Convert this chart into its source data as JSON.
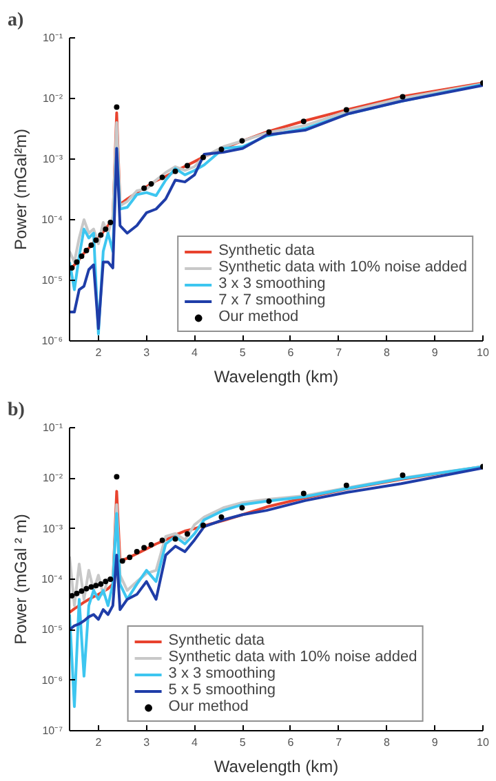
{
  "chart_data": [
    {
      "type": "line",
      "title": "a)",
      "xlabel": "Wavelength (km)",
      "ylabel": "Power (mGal²m)",
      "log": "y",
      "grid": false,
      "legend": "bottom right",
      "xlim": [
        1.4,
        10
      ],
      "ylim": [
        1e-06,
        0.1
      ],
      "xticks": [
        2,
        3,
        4,
        5,
        6,
        7,
        8,
        9,
        10
      ],
      "yticks": [
        {
          "value": 1e-06,
          "label": "10⁻⁶"
        },
        {
          "value": 1e-05,
          "label": "10⁻⁵"
        },
        {
          "value": 0.0001,
          "label": "10⁻⁴"
        },
        {
          "value": 0.001,
          "label": "10⁻³"
        },
        {
          "value": 0.01,
          "label": "10⁻²"
        },
        {
          "value": 0.1,
          "label": "10⁻¹"
        }
      ],
      "x": [
        1.4,
        1.5,
        1.6,
        1.7,
        1.8,
        1.9,
        2.0,
        2.1,
        2.2,
        2.3,
        2.38,
        2.45,
        2.6,
        2.8,
        3.0,
        3.2,
        3.4,
        3.6,
        3.8,
        4.0,
        4.2,
        4.6,
        5.0,
        5.5,
        6.3,
        7.2,
        8.3,
        10
      ],
      "series": [
        {
          "name": "Synthetic data",
          "color": "#e8432e",
          "values": [
            1.4e-05,
            1.8e-05,
            2.2e-05,
            2.8e-05,
            3.4e-05,
            4.2e-05,
            5e-05,
            6.3e-05,
            8e-05,
            0.0001,
            0.0058,
            0.00018,
            0.00022,
            0.00028,
            0.00035,
            0.00044,
            0.00052,
            0.00063,
            0.00076,
            0.00091,
            0.0011,
            0.0015,
            0.002,
            0.0028,
            0.0043,
            0.0066,
            0.0107,
            0.018
          ]
        },
        {
          "name": "Synthetic data with 10% noise added",
          "color": "#c8c8c8",
          "values": [
            3e-05,
            2e-05,
            5e-05,
            0.0001,
            6e-05,
            7e-05,
            4e-05,
            9e-05,
            6e-05,
            0.00011,
            0.004,
            0.00017,
            0.0002,
            0.0003,
            0.00032,
            0.00045,
            0.0006,
            0.00075,
            0.00065,
            0.00075,
            0.0011,
            0.0016,
            0.002,
            0.0027,
            0.0036,
            0.0062,
            0.01,
            0.0175
          ]
        },
        {
          "name": "3 x 3 smoothing",
          "color": "#3dc6f0",
          "values": [
            2e-05,
            7e-06,
            2.5e-05,
            7e-05,
            5e-05,
            6e-05,
            1.3e-06,
            3e-05,
            6e-05,
            3e-05,
            0.0015,
            0.00015,
            0.00016,
            0.00026,
            0.00028,
            0.00025,
            0.00045,
            0.0007,
            0.00055,
            0.00065,
            0.0008,
            0.0015,
            0.0016,
            0.0024,
            0.0032,
            0.0056,
            0.009,
            0.017
          ]
        },
        {
          "name": "7 x 7 smoothing",
          "color": "#1f3da8",
          "values": [
            3e-06,
            3e-06,
            7e-06,
            8e-06,
            1.5e-05,
            1.8e-05,
            1.6e-06,
            2e-05,
            2e-05,
            1.6e-05,
            0.0015,
            8e-05,
            6e-05,
            8e-05,
            0.00013,
            0.00015,
            0.00022,
            0.00045,
            0.00042,
            0.00055,
            0.0012,
            0.0013,
            0.0015,
            0.0025,
            0.003,
            0.0056,
            0.009,
            0.0165
          ]
        },
        {
          "name": "Our method",
          "type": "scatter",
          "marker": "circle",
          "color": "#000000",
          "x": [
            1.45,
            1.55,
            1.65,
            1.75,
            1.85,
            1.95,
            2.05,
            2.15,
            2.25,
            2.38,
            2.95,
            3.1,
            3.33,
            3.6,
            3.85,
            4.18,
            4.56,
            4.99,
            5.55,
            6.27,
            7.16,
            8.33,
            10
          ],
          "values": [
            1.6e-05,
            2e-05,
            2.5e-05,
            3.1e-05,
            3.8e-05,
            4.6e-05,
            5.6e-05,
            7e-05,
            9e-05,
            0.0072,
            0.00033,
            0.00039,
            0.0005,
            0.00063,
            0.00078,
            0.00107,
            0.00145,
            0.002,
            0.0028,
            0.0042,
            0.0065,
            0.0107,
            0.018
          ]
        }
      ]
    },
    {
      "type": "line",
      "title": "b)",
      "xlabel": "Wavelength (km)",
      "ylabel": "Power (mGal ² m)",
      "log": "y",
      "grid": false,
      "legend": "bottom",
      "xlim": [
        1.4,
        10
      ],
      "ylim": [
        1e-07,
        0.1
      ],
      "xticks": [
        2,
        3,
        4,
        5,
        6,
        7,
        8,
        9,
        10
      ],
      "yticks": [
        {
          "value": 1e-07,
          "label": "10⁻⁷"
        },
        {
          "value": 1e-06,
          "label": "10⁻⁶"
        },
        {
          "value": 1e-05,
          "label": "10⁻⁵"
        },
        {
          "value": 0.0001,
          "label": "10⁻⁴"
        },
        {
          "value": 0.001,
          "label": "10⁻³"
        },
        {
          "value": 0.01,
          "label": "10⁻²"
        },
        {
          "value": 0.1,
          "label": "10⁻¹"
        }
      ],
      "x": [
        1.4,
        1.5,
        1.6,
        1.7,
        1.8,
        1.9,
        2.0,
        2.1,
        2.2,
        2.3,
        2.38,
        2.45,
        2.6,
        2.8,
        3.0,
        3.2,
        3.4,
        3.6,
        3.8,
        4.0,
        4.2,
        4.6,
        5.0,
        5.5,
        6.3,
        7.2,
        8.3,
        10
      ],
      "series": [
        {
          "name": "Synthetic data",
          "color": "#e8432e",
          "values": [
            2.2e-05,
            2.6e-05,
            3e-05,
            3.5e-05,
            4e-05,
            4.5e-05,
            5e-05,
            5.7e-05,
            6.5e-05,
            8e-05,
            0.0055,
            0.00023,
            0.00026,
            0.00032,
            0.0004,
            0.0005,
            0.0006,
            0.00075,
            0.0009,
            0.001,
            0.00115,
            0.00145,
            0.0019,
            0.0027,
            0.0041,
            0.0062,
            0.0095,
            0.017
          ]
        },
        {
          "name": "Synthetic data with 10% noise added",
          "color": "#c8c8c8",
          "values": [
            0.00028,
            3e-05,
            0.0002,
            4e-05,
            0.00015,
            6e-05,
            0.00012,
            5e-05,
            0.0001,
            9e-05,
            0.003,
            0.00012,
            6e-05,
            9e-05,
            0.00013,
            0.00015,
            0.0007,
            0.0008,
            0.0006,
            0.0012,
            0.0017,
            0.0026,
            0.0033,
            0.0038,
            0.0045,
            0.0065,
            0.01,
            0.017
          ]
        },
        {
          "name": "3 x 3 smoothing",
          "color": "#3dc6f0",
          "values": [
            2e-05,
            3e-07,
            4e-05,
            1.2e-06,
            3e-05,
            6e-05,
            4e-05,
            6e-05,
            3e-05,
            8e-05,
            0.002,
            8e-05,
            4e-05,
            8e-05,
            0.00015,
            9e-05,
            0.0005,
            0.0007,
            0.0005,
            0.0008,
            0.0015,
            0.0023,
            0.003,
            0.0035,
            0.0043,
            0.0063,
            0.0098,
            0.017
          ]
        },
        {
          "name": "5 x 5 smoothing",
          "color": "#1f3da8",
          "values": [
            1e-05,
            1.2e-05,
            1.3e-05,
            1.5e-05,
            1.8e-05,
            2e-05,
            1.6e-05,
            2.5e-05,
            2e-05,
            3e-05,
            0.0003,
            2.5e-05,
            4e-05,
            5e-05,
            9e-05,
            4e-05,
            0.0003,
            0.00045,
            0.00035,
            0.0006,
            0.0011,
            0.0015,
            0.0019,
            0.0023,
            0.0036,
            0.0053,
            0.0078,
            0.016
          ]
        },
        {
          "name": "Our method",
          "type": "scatter",
          "marker": "circle",
          "color": "#000000",
          "x": [
            1.45,
            1.55,
            1.65,
            1.75,
            1.85,
            1.95,
            2.05,
            2.15,
            2.25,
            2.38,
            2.5,
            2.65,
            2.8,
            2.95,
            3.1,
            3.33,
            3.6,
            3.85,
            4.18,
            4.56,
            4.99,
            5.55,
            6.27,
            7.16,
            8.33,
            10
          ],
          "values": [
            4.7e-05,
            5.2e-05,
            5.8e-05,
            6.5e-05,
            7e-05,
            7.5e-05,
            8e-05,
            9e-05,
            0.0001,
            0.0107,
            0.00023,
            0.00027,
            0.00035,
            0.00042,
            0.00048,
            0.00059,
            0.00063,
            0.00079,
            0.00117,
            0.0017,
            0.0026,
            0.0035,
            0.005,
            0.0072,
            0.0115,
            0.017
          ]
        }
      ]
    }
  ]
}
